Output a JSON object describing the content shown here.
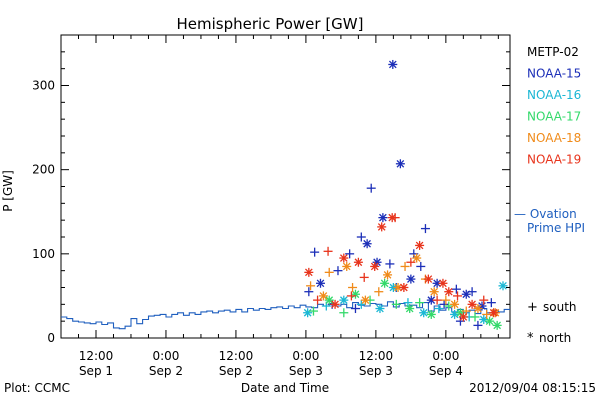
{
  "chart_data": {
    "type": "scatter",
    "title": "Hemispheric Power [GW]",
    "ylabel": "P [GW]",
    "xlabel": "Date and Time",
    "ylim": [
      0,
      360
    ],
    "yticks": [
      0,
      100,
      200,
      300
    ],
    "x_unit": "hours since 2012-09-01 00:00 UT",
    "xlim": [
      6,
      83
    ],
    "xticks": [
      {
        "x": 12,
        "time": "12:00",
        "date": "Sep 1"
      },
      {
        "x": 24,
        "time": "0:00",
        "date": "Sep 2"
      },
      {
        "x": 36,
        "time": "12:00",
        "date": "Sep 2"
      },
      {
        "x": 48,
        "time": "0:00",
        "date": "Sep 3"
      },
      {
        "x": 60,
        "time": "12:00",
        "date": "Sep 3"
      },
      {
        "x": 72,
        "time": "0:00",
        "date": "Sep 4"
      }
    ],
    "footer_left": "Plot: CCMC",
    "footer_right": "2012/09/04 08:15:15",
    "markers_legend": [
      {
        "symbol": "+",
        "label": "south"
      },
      {
        "symbol": "*",
        "label": "north"
      }
    ],
    "ovation": {
      "name": "Ovation Prime HPI",
      "line1": "— Ovation",
      "line2": "Prime HPI",
      "color": "#1f5fbf",
      "x": [
        6,
        7,
        8,
        9,
        10,
        11,
        12,
        13,
        14,
        15,
        16,
        17,
        18,
        19,
        20,
        21,
        22,
        23,
        24,
        25,
        26,
        27,
        28,
        29,
        30,
        31,
        32,
        33,
        34,
        35,
        36,
        37,
        38,
        39,
        40,
        41,
        42,
        43,
        44,
        45,
        46,
        47,
        48,
        49,
        50,
        51,
        52,
        53,
        54,
        55,
        56,
        57,
        58,
        59,
        60,
        61,
        62,
        63,
        64,
        65,
        66,
        67,
        68,
        69,
        70,
        71,
        72,
        73,
        74,
        75,
        76,
        77,
        78,
        79,
        80,
        81,
        82
      ],
      "y": [
        25,
        23,
        20,
        19,
        18,
        17,
        19,
        16,
        18,
        12,
        11,
        14,
        23,
        17,
        22,
        26,
        27,
        28,
        25,
        28,
        30,
        27,
        30,
        28,
        31,
        32,
        30,
        32,
        33,
        31,
        34,
        31,
        35,
        33,
        35,
        34,
        36,
        37,
        35,
        38,
        36,
        39,
        37,
        36,
        40,
        38,
        41,
        38,
        40,
        36,
        42,
        39,
        38,
        41,
        40,
        38,
        43,
        37,
        41,
        38,
        39,
        36,
        42,
        32,
        38,
        33,
        36,
        31,
        34,
        30,
        33,
        29,
        35,
        30,
        33,
        31,
        34
      ]
    },
    "series": [
      {
        "name": "METP-02",
        "color": "#000000",
        "points": []
      },
      {
        "name": "NOAA-15",
        "color": "#1c2fb8",
        "points": [
          {
            "x": 48.5,
            "y": 55,
            "m": "+"
          },
          {
            "x": 49.5,
            "y": 102,
            "m": "+"
          },
          {
            "x": 50.5,
            "y": 65,
            "m": "*"
          },
          {
            "x": 53.5,
            "y": 80,
            "m": "+"
          },
          {
            "x": 55.5,
            "y": 100,
            "m": "+"
          },
          {
            "x": 57.5,
            "y": 120,
            "m": "+"
          },
          {
            "x": 58.5,
            "y": 112,
            "m": "*"
          },
          {
            "x": 59.2,
            "y": 178,
            "m": "+"
          },
          {
            "x": 60.2,
            "y": 90,
            "m": "*"
          },
          {
            "x": 61.2,
            "y": 143,
            "m": "*"
          },
          {
            "x": 62.4,
            "y": 88,
            "m": "+"
          },
          {
            "x": 62.9,
            "y": 325,
            "m": "*"
          },
          {
            "x": 64.2,
            "y": 207,
            "m": "*"
          },
          {
            "x": 66.5,
            "y": 100,
            "m": "+"
          },
          {
            "x": 67.7,
            "y": 85,
            "m": "+"
          },
          {
            "x": 68.5,
            "y": 130,
            "m": "+"
          },
          {
            "x": 70.5,
            "y": 65,
            "m": "*"
          },
          {
            "x": 71.7,
            "y": 40,
            "m": "+"
          },
          {
            "x": 73.8,
            "y": 58,
            "m": "+"
          },
          {
            "x": 75.5,
            "y": 52,
            "m": "*"
          },
          {
            "x": 76.5,
            "y": 55,
            "m": "+"
          },
          {
            "x": 78.2,
            "y": 38,
            "m": "*"
          },
          {
            "x": 79.8,
            "y": 42,
            "m": "+"
          },
          {
            "x": 56.5,
            "y": 35,
            "m": "+"
          },
          {
            "x": 63.5,
            "y": 60,
            "m": "+"
          },
          {
            "x": 69.5,
            "y": 45,
            "m": "*"
          },
          {
            "x": 74.5,
            "y": 20,
            "m": "+"
          },
          {
            "x": 77.5,
            "y": 15,
            "m": "+"
          },
          {
            "x": 52.5,
            "y": 40,
            "m": "+"
          },
          {
            "x": 66.0,
            "y": 70,
            "m": "*"
          }
        ]
      },
      {
        "name": "NOAA-16",
        "color": "#1bb7d4",
        "points": [
          {
            "x": 48.3,
            "y": 30,
            "m": "*"
          },
          {
            "x": 51.5,
            "y": 38,
            "m": "+"
          },
          {
            "x": 54.5,
            "y": 45,
            "m": "*"
          },
          {
            "x": 57.5,
            "y": 40,
            "m": "+"
          },
          {
            "x": 60.7,
            "y": 35,
            "m": "*"
          },
          {
            "x": 63.0,
            "y": 60,
            "m": "*"
          },
          {
            "x": 65.5,
            "y": 42,
            "m": "+"
          },
          {
            "x": 68.2,
            "y": 30,
            "m": "*"
          },
          {
            "x": 70.8,
            "y": 35,
            "m": "+"
          },
          {
            "x": 73.5,
            "y": 28,
            "m": "*"
          },
          {
            "x": 76.0,
            "y": 25,
            "m": "+"
          },
          {
            "x": 78.5,
            "y": 22,
            "m": "*"
          },
          {
            "x": 81.8,
            "y": 62,
            "m": "*"
          }
        ]
      },
      {
        "name": "NOAA-17",
        "color": "#33d96a",
        "points": [
          {
            "x": 49.3,
            "y": 32,
            "m": "+"
          },
          {
            "x": 52.0,
            "y": 45,
            "m": "*"
          },
          {
            "x": 54.5,
            "y": 30,
            "m": "+"
          },
          {
            "x": 56.5,
            "y": 52,
            "m": "*"
          },
          {
            "x": 59.0,
            "y": 45,
            "m": "+"
          },
          {
            "x": 61.5,
            "y": 65,
            "m": "*"
          },
          {
            "x": 63.5,
            "y": 40,
            "m": "+"
          },
          {
            "x": 65.8,
            "y": 35,
            "m": "*"
          },
          {
            "x": 67.5,
            "y": 42,
            "m": "+"
          },
          {
            "x": 69.5,
            "y": 28,
            "m": "*"
          },
          {
            "x": 72.5,
            "y": 38,
            "m": "+"
          },
          {
            "x": 74.5,
            "y": 30,
            "m": "*"
          },
          {
            "x": 77.0,
            "y": 25,
            "m": "+"
          },
          {
            "x": 79.5,
            "y": 20,
            "m": "*"
          },
          {
            "x": 80.8,
            "y": 15,
            "m": "*"
          }
        ]
      },
      {
        "name": "NOAA-18",
        "color": "#f08b1a",
        "points": [
          {
            "x": 48.8,
            "y": 62,
            "m": "+"
          },
          {
            "x": 51.0,
            "y": 50,
            "m": "*"
          },
          {
            "x": 52.0,
            "y": 78,
            "m": "+"
          },
          {
            "x": 55.0,
            "y": 85,
            "m": "*"
          },
          {
            "x": 56.0,
            "y": 60,
            "m": "+"
          },
          {
            "x": 58.2,
            "y": 45,
            "m": "*"
          },
          {
            "x": 60.5,
            "y": 55,
            "m": "+"
          },
          {
            "x": 62.0,
            "y": 75,
            "m": "*"
          },
          {
            "x": 63.8,
            "y": 60,
            "m": "*"
          },
          {
            "x": 65.0,
            "y": 85,
            "m": "+"
          },
          {
            "x": 67.0,
            "y": 95,
            "m": "*"
          },
          {
            "x": 68.5,
            "y": 70,
            "m": "+"
          },
          {
            "x": 70.0,
            "y": 55,
            "m": "*"
          },
          {
            "x": 72.0,
            "y": 45,
            "m": "+"
          },
          {
            "x": 73.5,
            "y": 40,
            "m": "*"
          },
          {
            "x": 75.5,
            "y": 32,
            "m": "+"
          },
          {
            "x": 77.5,
            "y": 35,
            "m": "*"
          },
          {
            "x": 79.0,
            "y": 28,
            "m": "+"
          },
          {
            "x": 80.5,
            "y": 30,
            "m": "*"
          }
        ]
      },
      {
        "name": "NOAA-19",
        "color": "#e8341c",
        "points": [
          {
            "x": 48.5,
            "y": 78,
            "m": "*"
          },
          {
            "x": 50.0,
            "y": 45,
            "m": "+"
          },
          {
            "x": 51.8,
            "y": 103,
            "m": "+"
          },
          {
            "x": 53.0,
            "y": 40,
            "m": "*"
          },
          {
            "x": 54.5,
            "y": 95,
            "m": "*"
          },
          {
            "x": 55.8,
            "y": 50,
            "m": "+"
          },
          {
            "x": 57.0,
            "y": 90,
            "m": "*"
          },
          {
            "x": 58.0,
            "y": 72,
            "m": "+"
          },
          {
            "x": 59.8,
            "y": 85,
            "m": "*"
          },
          {
            "x": 61.0,
            "y": 132,
            "m": "*"
          },
          {
            "x": 62.8,
            "y": 143,
            "m": "*"
          },
          {
            "x": 63.3,
            "y": 143,
            "m": "+"
          },
          {
            "x": 64.8,
            "y": 60,
            "m": "*"
          },
          {
            "x": 66.0,
            "y": 90,
            "m": "+"
          },
          {
            "x": 67.5,
            "y": 110,
            "m": "*"
          },
          {
            "x": 69.0,
            "y": 70,
            "m": "*"
          },
          {
            "x": 70.5,
            "y": 45,
            "m": "+"
          },
          {
            "x": 72.5,
            "y": 55,
            "m": "*"
          },
          {
            "x": 74.0,
            "y": 50,
            "m": "+"
          },
          {
            "x": 76.5,
            "y": 40,
            "m": "*"
          },
          {
            "x": 78.5,
            "y": 45,
            "m": "+"
          },
          {
            "x": 80.2,
            "y": 30,
            "m": "*"
          },
          {
            "x": 71.5,
            "y": 65,
            "m": "*"
          },
          {
            "x": 75.0,
            "y": 25,
            "m": "*"
          }
        ]
      }
    ]
  }
}
